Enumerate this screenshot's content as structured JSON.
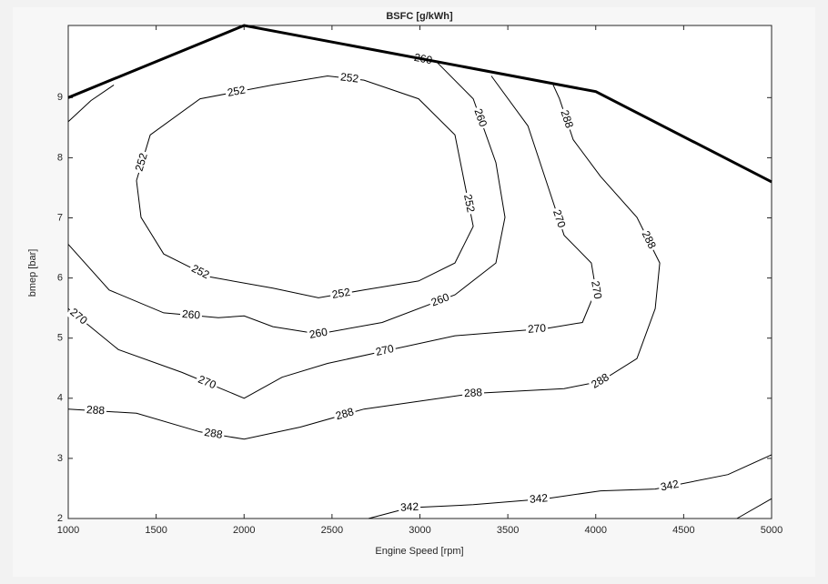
{
  "chart_data": {
    "type": "contour",
    "title": "BSFC [g/kWh]",
    "x_label": "Engine Speed [rpm]",
    "y_label": "bmep [bar]",
    "xlim": [
      1000,
      5000
    ],
    "xticks": [
      1000,
      1500,
      2000,
      2500,
      3000,
      3500,
      4000,
      4500,
      5000
    ],
    "ylim": [
      2,
      10.2
    ],
    "yticks": [
      2,
      3,
      4,
      5,
      6,
      7,
      8,
      9
    ],
    "contours": [
      {
        "level": 252,
        "pieces": [
          {
            "x": [
              1388,
              1466,
              1750,
              2164,
              2475,
              2682,
              2992,
              3199,
              3251,
              3303,
              3199,
              2992,
              2682,
              2423,
              2164,
              1802,
              1543,
              1414,
              1388
            ],
            "y": [
              7.62,
              8.38,
              8.98,
              9.21,
              9.36,
              9.29,
              8.98,
              8.38,
              7.62,
              6.86,
              6.25,
              5.95,
              5.8,
              5.67,
              5.83,
              6.02,
              6.4,
              7.01,
              7.62
            ]
          }
        ]
      },
      {
        "level": 260,
        "pieces": [
          {
            "x": [
              1000,
              1233,
              1543,
              1854,
              2000,
              2164,
              2423,
              2785,
              3199,
              3432,
              3484,
              3432,
              3303,
              3096,
              2900
            ],
            "y": [
              6.56,
              5.8,
              5.42,
              5.34,
              5.37,
              5.19,
              5.07,
              5.26,
              5.72,
              6.25,
              7.01,
              7.92,
              8.98,
              9.59,
              9.7
            ]
          },
          {
            "x": [
              1000,
              1129,
              1259
            ],
            "y": [
              8.6,
              8.95,
              9.21
            ]
          }
        ]
      },
      {
        "level": 270,
        "pieces": [
          {
            "x": [
              1000,
              1285,
              1647,
              2000,
              2216,
              2475,
              2837,
              3199,
              3717,
              3924,
              4001,
              3975,
              3820,
              3717,
              3614,
              3406
            ],
            "y": [
              5.49,
              4.81,
              4.43,
              4.0,
              4.35,
              4.58,
              4.81,
              5.04,
              5.16,
              5.26,
              5.8,
              6.25,
              6.71,
              7.62,
              8.53,
              9.36
            ]
          }
        ]
      },
      {
        "level": 288,
        "pieces": [
          {
            "x": [
              1000,
              1388,
              1750,
              2000,
              2320,
              2682,
              3044,
              3303,
              3820,
              4027,
              4234,
              4338,
              4364,
              4234,
              4027,
              3872,
              3794,
              3758
            ],
            "y": [
              3.82,
              3.75,
              3.44,
              3.32,
              3.52,
              3.82,
              3.97,
              4.08,
              4.16,
              4.28,
              4.66,
              5.49,
              6.25,
              7.01,
              7.69,
              8.3,
              8.98,
              9.21
            ]
          }
        ]
      },
      {
        "level": 342,
        "pieces": [
          {
            "x": [
              2708,
              2941,
              3303,
              3717,
              4027,
              4338,
              4752,
              5000
            ],
            "y": [
              2.0,
              2.18,
              2.23,
              2.33,
              2.46,
              2.49,
              2.73,
              3.06
            ]
          },
          {
            "x": [
              4803,
              5000
            ],
            "y": [
              2.0,
              2.33
            ]
          }
        ]
      }
    ],
    "full_load": {
      "x": [
        1000,
        2000,
        4000,
        5000
      ],
      "y": [
        9.0,
        10.2,
        9.1,
        7.6
      ]
    }
  }
}
